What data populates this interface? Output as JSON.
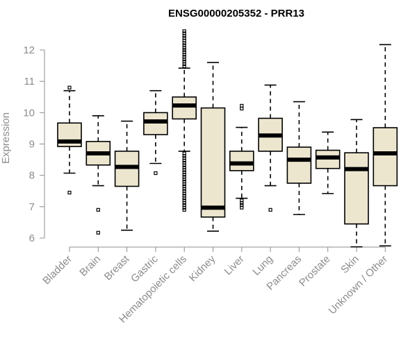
{
  "chart_data": {
    "type": "boxplot",
    "title": "ENSG00000205352 - PRR13",
    "ylabel": "Expression",
    "xlabel": "",
    "ylim": [
      5.6,
      12.7
    ],
    "yticks": [
      6,
      7,
      8,
      9,
      10,
      11,
      12
    ],
    "box_color": "#ede6cf",
    "categories": [
      "Bladder",
      "Brain",
      "Breast",
      "Gastric",
      "Hematopoietic cells",
      "Kidney",
      "Liver",
      "Lung",
      "Pancreas",
      "Prostate",
      "Skin",
      "Unknown / Other"
    ],
    "boxes": [
      {
        "whisker_low": 8.07,
        "q1": 8.92,
        "median": 9.08,
        "q3": 9.67,
        "whisker_high": 10.7,
        "outliers": [
          10.8,
          7.45
        ]
      },
      {
        "whisker_low": 7.67,
        "q1": 8.33,
        "median": 8.7,
        "q3": 9.08,
        "whisker_high": 9.9,
        "outliers": [
          6.9,
          6.17
        ]
      },
      {
        "whisker_low": 6.25,
        "q1": 7.65,
        "median": 8.27,
        "q3": 8.77,
        "whisker_high": 9.73,
        "outliers": []
      },
      {
        "whisker_low": 8.38,
        "q1": 9.3,
        "median": 9.72,
        "q3": 10.0,
        "whisker_high": 10.7,
        "outliers": [
          8.07
        ]
      },
      {
        "whisker_low": 8.77,
        "q1": 9.8,
        "median": 10.23,
        "q3": 10.5,
        "whisker_high": 11.42,
        "outliers": [
          12.6,
          12.53,
          12.45,
          12.38,
          12.3,
          12.22,
          12.15,
          12.07,
          12.0,
          11.93,
          11.85,
          11.78,
          11.7,
          11.63,
          11.55,
          11.48,
          8.7,
          8.62,
          8.55,
          8.47,
          8.4,
          8.32,
          8.25,
          8.17,
          8.1,
          8.02,
          7.95,
          7.87,
          7.8,
          7.72,
          7.65,
          7.57,
          7.5,
          7.42,
          7.35,
          7.27,
          7.2,
          7.12,
          7.05,
          6.97,
          6.9
        ]
      },
      {
        "whisker_low": 6.22,
        "q1": 6.67,
        "median": 6.97,
        "q3": 10.15,
        "whisker_high": 11.6,
        "outliers": []
      },
      {
        "whisker_low": 7.27,
        "q1": 8.15,
        "median": 8.38,
        "q3": 8.77,
        "whisker_high": 9.53,
        "outliers": [
          10.22,
          10.13,
          7.2,
          7.12,
          7.05,
          6.97
        ]
      },
      {
        "whisker_low": 7.67,
        "q1": 8.77,
        "median": 9.27,
        "q3": 9.82,
        "whisker_high": 10.88,
        "outliers": [
          6.9
        ]
      },
      {
        "whisker_low": 6.75,
        "q1": 7.75,
        "median": 8.5,
        "q3": 8.9,
        "whisker_high": 10.35,
        "outliers": []
      },
      {
        "whisker_low": 7.42,
        "q1": 8.22,
        "median": 8.57,
        "q3": 8.8,
        "whisker_high": 9.38,
        "outliers": []
      },
      {
        "whisker_low": 5.72,
        "q1": 6.45,
        "median": 8.2,
        "q3": 8.72,
        "whisker_high": 9.78,
        "outliers": []
      },
      {
        "whisker_low": 5.75,
        "q1": 7.67,
        "median": 8.7,
        "q3": 9.52,
        "whisker_high": 12.17,
        "outliers": []
      }
    ]
  }
}
